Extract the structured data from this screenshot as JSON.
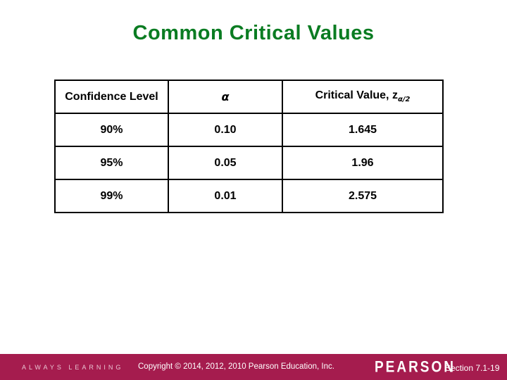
{
  "slide": {
    "title": "Common Critical Values"
  },
  "table": {
    "headers": {
      "confidence": "Confidence Level",
      "alpha": "α",
      "critical_base": "Critical Value, z",
      "critical_sub": "α/2"
    },
    "rows": [
      [
        "90%",
        "0.10",
        "1.645"
      ],
      [
        "95%",
        "0.05",
        "1.96"
      ],
      [
        "99%",
        "0.01",
        "2.575"
      ]
    ]
  },
  "chart_data": {
    "type": "table",
    "title": "Common Critical Values",
    "columns": [
      "Confidence Level",
      "α",
      "Critical Value, z_α/2"
    ],
    "rows": [
      {
        "confidence_level": "90%",
        "alpha": 0.1,
        "critical_value": 1.645
      },
      {
        "confidence_level": "95%",
        "alpha": 0.05,
        "critical_value": 1.96
      },
      {
        "confidence_level": "99%",
        "alpha": 0.01,
        "critical_value": 2.575
      }
    ]
  },
  "footer": {
    "always_learning": "ALWAYS LEARNING",
    "copyright": "Copyright © 2014, 2012, 2010 Pearson Education, Inc.",
    "brand": "PEARSON",
    "section": "Section 7.1-19"
  },
  "colors": {
    "title_green": "#0a7c22",
    "footer_maroon": "#a51c4e",
    "table_border": "#000000"
  }
}
